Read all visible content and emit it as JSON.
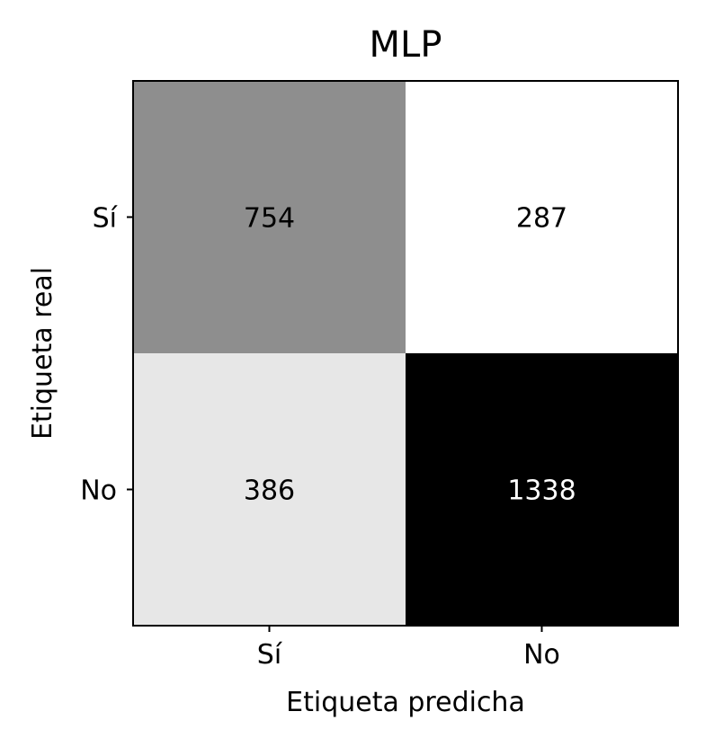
{
  "chart_data": {
    "type": "heatmap",
    "title": "MLP",
    "xlabel": "Etiqueta predicha",
    "ylabel": "Etiqueta real",
    "x_categories": [
      "Sí",
      "No"
    ],
    "y_categories": [
      "Sí",
      "No"
    ],
    "values": [
      [
        754,
        287
      ],
      [
        386,
        1338
      ]
    ],
    "colormap": "grayscale (low = white, high = black)",
    "grid": false,
    "colorbar": false
  }
}
